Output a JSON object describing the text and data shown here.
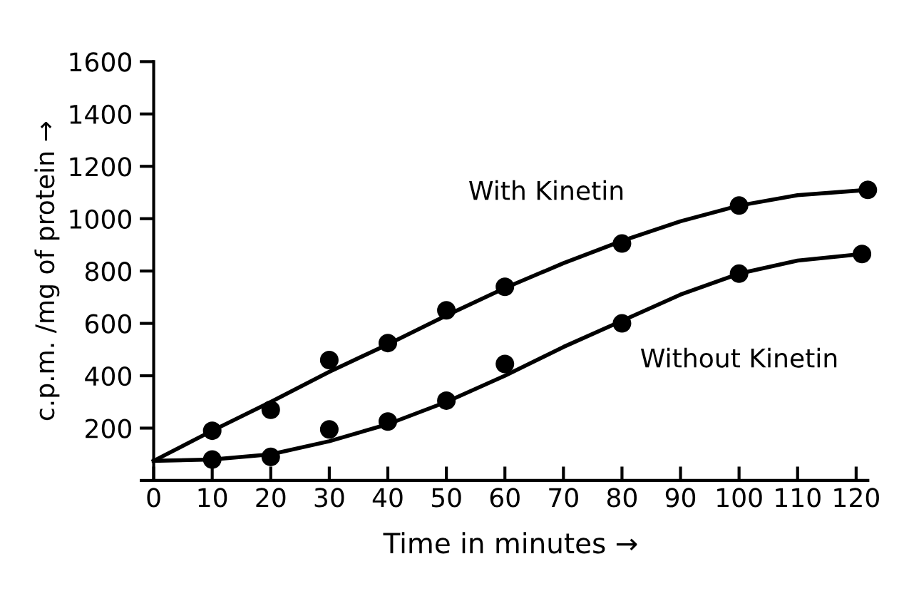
{
  "chart_data": {
    "type": "line",
    "xlabel": "Time in minutes →",
    "ylabel": "c.p.m. /mg of protein →",
    "xlim": [
      0,
      122
    ],
    "ylim": [
      0,
      1600
    ],
    "xticks": [
      0,
      10,
      20,
      30,
      40,
      50,
      60,
      70,
      80,
      90,
      100,
      110,
      120
    ],
    "yticks": [
      {
        "value": 0,
        "label": null
      },
      200,
      400,
      600,
      800,
      1000,
      1200,
      1400,
      1600
    ],
    "grid": false,
    "series": [
      {
        "name": "With Kinetin",
        "marker": "none",
        "color": "#000000",
        "x": [
          0,
          10,
          20,
          30,
          40,
          50,
          60,
          70,
          80,
          90,
          100,
          110,
          122
        ],
        "values": [
          75,
          190,
          300,
          415,
          520,
          630,
          735,
          830,
          915,
          990,
          1050,
          1090,
          1110
        ]
      },
      {
        "name": "Without Kinetin",
        "marker": "none",
        "color": "#000000",
        "x": [
          0,
          10,
          20,
          30,
          40,
          50,
          60,
          70,
          80,
          90,
          100,
          110,
          121
        ],
        "values": [
          75,
          80,
          100,
          150,
          215,
          300,
          400,
          510,
          610,
          710,
          790,
          840,
          865
        ]
      },
      {
        "type": "scatter",
        "marker": "circle",
        "color": "#000000",
        "x": [
          10,
          20,
          30,
          40,
          50,
          60,
          80,
          100,
          122
        ],
        "values": [
          190,
          270,
          460,
          525,
          650,
          740,
          905,
          1050,
          1110
        ]
      },
      {
        "type": "scatter",
        "marker": "circle",
        "color": "#000000",
        "x": [
          10,
          20,
          30,
          40,
          50,
          60,
          80,
          100,
          121
        ],
        "values": [
          80,
          90,
          195,
          225,
          305,
          445,
          600,
          790,
          865
        ]
      }
    ]
  }
}
